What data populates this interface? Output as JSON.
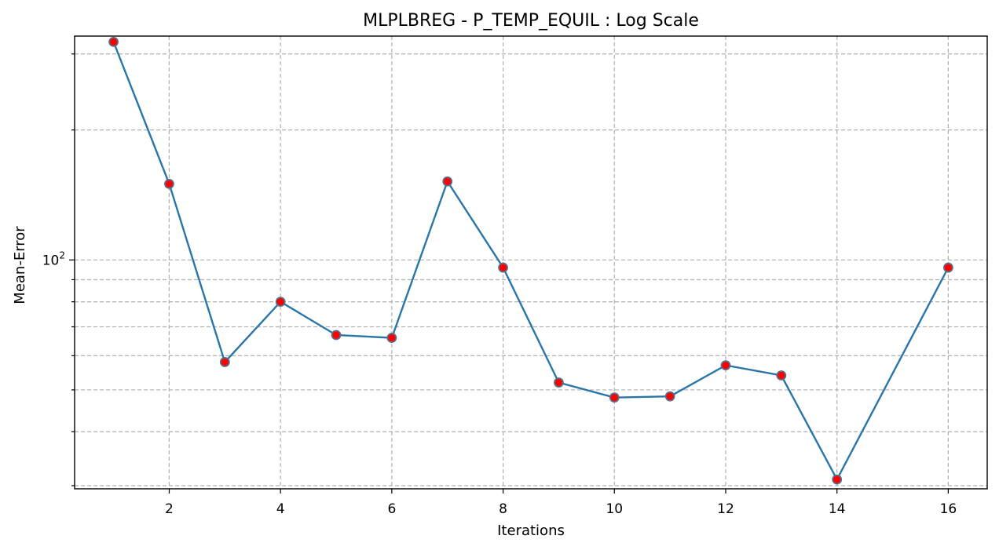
{
  "chart_data": {
    "type": "line",
    "title": "MLPLBREG - P_TEMP_EQUIL : Log Scale",
    "xlabel": "Iterations",
    "ylabel": "Mean-Error",
    "y_scale": "log",
    "xlim": [
      0.3,
      16.7
    ],
    "ylim": [
      29.5,
      330
    ],
    "grid": true,
    "x_ticks": [
      2,
      4,
      6,
      8,
      10,
      12,
      14,
      16
    ],
    "x_tick_labels": [
      "2",
      "4",
      "6",
      "8",
      "10",
      "12",
      "14",
      "16"
    ],
    "y_major_ticks": [
      100
    ],
    "y_major_tick_labels": [
      "10^2"
    ],
    "y_minor_ticks": [
      30,
      40,
      50,
      60,
      70,
      80,
      90,
      200,
      300
    ],
    "series": [
      {
        "line_color": "#2a76a9",
        "marker_color": "#ff0000",
        "marker_edge_color": "#5a6f8a",
        "x": [
          1,
          2,
          3,
          4,
          5,
          6,
          7,
          8,
          9,
          10,
          11,
          12,
          13,
          14,
          16
        ],
        "y": [
          320,
          150,
          58,
          80,
          67,
          66,
          152,
          96,
          52,
          48,
          48.3,
          57,
          54,
          31,
          96
        ]
      }
    ]
  }
}
